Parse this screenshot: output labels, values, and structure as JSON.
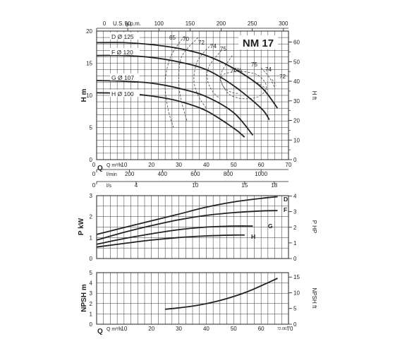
{
  "chart_data": [
    {
      "type": "line",
      "title": "NM 17",
      "xlabel": "Q m³/h",
      "ylabel": "H m",
      "ylabel_right": "H ft",
      "xlim": [
        0,
        70
      ],
      "ylim": [
        0,
        20
      ],
      "grid": true,
      "x_ticks": [
        "0",
        "10",
        "20",
        "30",
        "40",
        "50",
        "60",
        "70"
      ],
      "y_ticks": [
        "0",
        "5",
        "10",
        "15",
        "20"
      ],
      "top_axis": {
        "label": "U.S. g.p.m.",
        "ticks": [
          "0",
          "50",
          "100",
          "150",
          "200",
          "250",
          "300"
        ]
      },
      "right_axis": {
        "ticks": [
          "0",
          "10",
          "20",
          "30",
          "40",
          "50",
          "60"
        ]
      },
      "secondary_axes": [
        {
          "label": "Q",
          "unit": "l/min",
          "ticks": [
            "0",
            "200",
            "400",
            "600",
            "800",
            "1000"
          ]
        },
        {
          "label": "",
          "unit": "l/s",
          "ticks": [
            "0",
            "4",
            "10",
            "15",
            "18"
          ]
        }
      ],
      "series": [
        {
          "name": "D Ø 125",
          "x": [
            0,
            10,
            20,
            30,
            40,
            50,
            60,
            66
          ],
          "y": [
            18.2,
            18.2,
            17.9,
            17.3,
            16.2,
            14.2,
            11.3,
            8.0
          ]
        },
        {
          "name": "F Ø 120",
          "x": [
            0,
            10,
            20,
            30,
            40,
            50,
            60,
            63
          ],
          "y": [
            16.2,
            16.2,
            15.9,
            15.2,
            14.0,
            11.5,
            8.0,
            6.2
          ]
        },
        {
          "name": "G Ø 107",
          "x": [
            0,
            10,
            20,
            30,
            40,
            50,
            57
          ],
          "y": [
            12.3,
            12.2,
            11.9,
            11.1,
            9.8,
            7.3,
            3.8
          ]
        },
        {
          "name": "H Ø 100",
          "x": [
            0,
            10,
            20,
            30,
            40,
            50,
            54
          ],
          "y": [
            10.4,
            10.3,
            9.9,
            9.1,
            7.6,
            4.9,
            3.5
          ]
        }
      ],
      "efficiency_labels": [
        "65",
        "70",
        "72",
        "74",
        "75",
        "76%",
        "75",
        "74",
        "72"
      ]
    },
    {
      "type": "line",
      "xlabel": "",
      "ylabel": "P kW",
      "ylabel_right": "P HP",
      "xlim": [
        0,
        70
      ],
      "ylim": [
        0,
        3
      ],
      "grid": true,
      "y_ticks": [
        "0",
        "1",
        "2",
        "3"
      ],
      "right_axis": {
        "ticks": [
          "0",
          "1",
          "2",
          "3",
          "4"
        ]
      },
      "series": [
        {
          "name": "D",
          "x": [
            0,
            10,
            20,
            30,
            40,
            50,
            60,
            66
          ],
          "y": [
            1.15,
            1.48,
            1.8,
            2.12,
            2.45,
            2.7,
            2.87,
            2.95
          ]
        },
        {
          "name": "F",
          "x": [
            0,
            10,
            20,
            30,
            40,
            50,
            60,
            66
          ],
          "y": [
            0.88,
            1.25,
            1.57,
            1.85,
            2.06,
            2.19,
            2.27,
            2.29
          ]
        },
        {
          "name": "G",
          "x": [
            0,
            10,
            20,
            30,
            40,
            50,
            57
          ],
          "y": [
            0.68,
            0.95,
            1.18,
            1.38,
            1.5,
            1.55,
            1.55
          ]
        },
        {
          "name": "H",
          "x": [
            0,
            10,
            20,
            30,
            40,
            50,
            54
          ],
          "y": [
            0.55,
            0.72,
            0.88,
            1.0,
            1.08,
            1.12,
            1.12
          ]
        }
      ]
    },
    {
      "type": "line",
      "xlabel": "Q m³/h",
      "ylabel": "NPSH m",
      "ylabel_right": "NPSH ft",
      "xlim": [
        0,
        70
      ],
      "ylim": [
        0,
        5
      ],
      "grid": true,
      "x_ticks": [
        "10",
        "20",
        "30",
        "40",
        "50",
        "60",
        "70"
      ],
      "y_ticks": [
        "0",
        "1",
        "2",
        "3",
        "4",
        "5"
      ],
      "right_axis": {
        "ticks": [
          "0",
          "5",
          "10",
          "15"
        ]
      },
      "series": [
        {
          "name": "",
          "x": [
            25,
            35,
            45,
            55,
            66
          ],
          "y": [
            1.45,
            1.75,
            2.3,
            3.15,
            4.45
          ]
        }
      ],
      "code": "72.067"
    }
  ]
}
